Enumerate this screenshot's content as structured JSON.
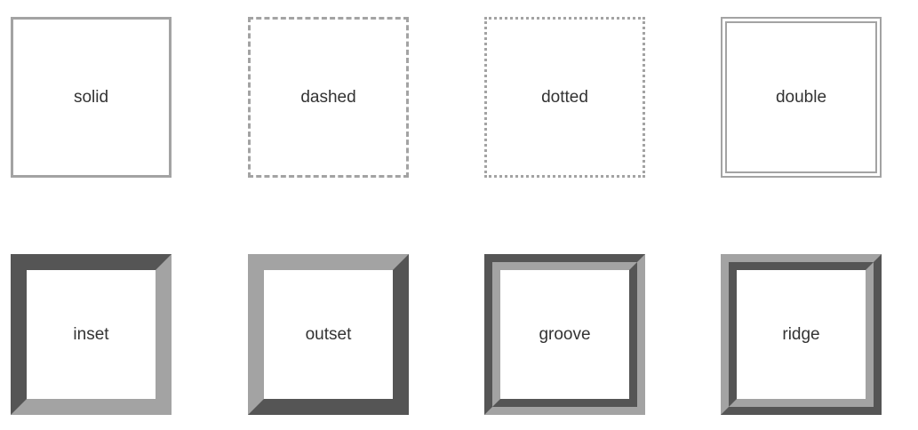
{
  "boxes": {
    "solid": "solid",
    "dashed": "dashed",
    "dotted": "dotted",
    "double": "double",
    "inset": "inset",
    "outset": "outset",
    "groove": "groove",
    "ridge": "ridge"
  },
  "colors": {
    "light_border": "#a3a3a3",
    "dark_border": "#555555",
    "label_text": "#333333",
    "background": "#ffffff"
  }
}
